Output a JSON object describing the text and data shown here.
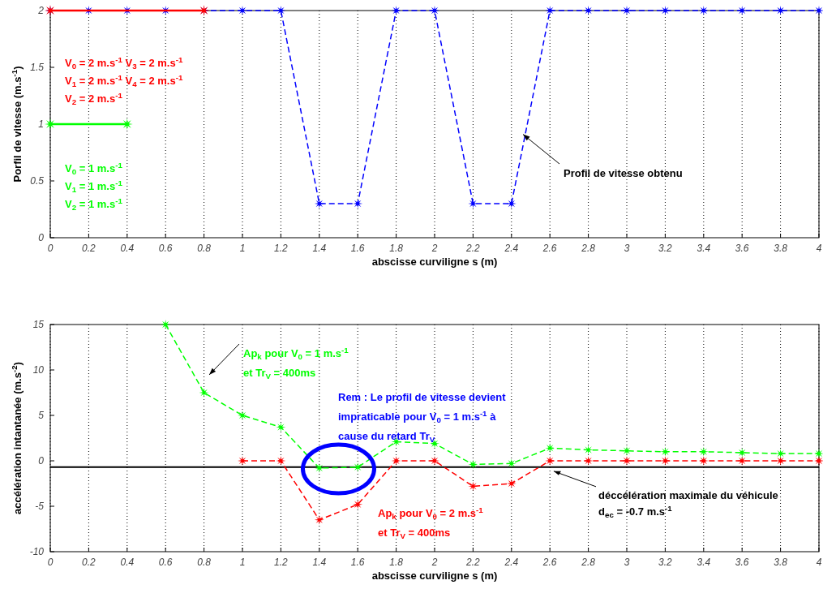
{
  "chart_data": [
    {
      "type": "line",
      "xlabel": "abscisse curviligne s (m)",
      "ylabel": "Porfil de vitesse (m.s$^{-1}$)",
      "xlim": [
        0,
        4
      ],
      "ylim": [
        0,
        2
      ],
      "xticks": [
        0,
        0.2,
        0.4,
        0.6,
        0.8,
        1,
        1.2,
        1.4,
        1.6,
        1.8,
        2,
        2.2,
        2.4,
        2.6,
        2.8,
        3,
        3.2,
        3.4,
        3.6,
        3.8,
        4
      ],
      "yticks": [
        0,
        0.5,
        1,
        1.5,
        2
      ],
      "grid": "x",
      "marker": "star",
      "series": [
        {
          "color": "#ff0000",
          "line_style": "solid",
          "x": [
            0,
            0.8
          ],
          "values": [
            2,
            2
          ]
        },
        {
          "color": "#00ff00",
          "line_style": "solid",
          "x": [
            0,
            0.4
          ],
          "values": [
            1,
            1
          ]
        },
        {
          "color": "#0000ff",
          "line_style": "dashed",
          "x": [
            0,
            0.2,
            0.4,
            0.6,
            0.8,
            1,
            1.2,
            1.4,
            1.6,
            1.8,
            2,
            2.2,
            2.4,
            2.6,
            2.8,
            3,
            3.2,
            3.4,
            3.6,
            3.8,
            4
          ],
          "values": [
            2,
            2,
            2,
            2,
            2,
            2,
            2,
            0.3,
            0.3,
            2,
            2,
            0.3,
            0.3,
            2,
            2,
            2,
            2,
            2,
            2,
            2,
            2
          ]
        }
      ],
      "annotations": [
        "V$_{0}$ = 2 m.s$^{-1}$ V$_{3}$ = 2 m.s$^{-1}$",
        "V$_{1}$ = 2 m.s$^{-1}$ V$_{4}$ = 2 m.s$^{-1}$",
        "V$_{2}$ = 2 m.s$^{-1}$",
        "V$_{0}$ = 1 m.s$^{-1}$",
        "V$_{1}$ = 1 m.s$^{-1}$",
        "V$_{2}$ = 1 m.s$^{-1}$",
        {
          "text": "Profil de vitesse obtenu",
          "x": 2.46,
          "y": 0.91
        }
      ]
    },
    {
      "type": "line",
      "xlabel": "abscisse curviligne s (m)",
      "ylabel": "accélération intantanée (m.s$^{-2}$)",
      "xlim": [
        0,
        4
      ],
      "ylim": [
        -10,
        15
      ],
      "xticks": [
        0,
        0.2,
        0.4,
        0.6,
        0.8,
        1,
        1.2,
        1.4,
        1.6,
        1.8,
        2,
        2.2,
        2.4,
        2.6,
        2.8,
        3,
        3.2,
        3.4,
        3.6,
        3.8,
        4
      ],
      "yticks": [
        -10,
        -5,
        0,
        5,
        10,
        15
      ],
      "grid": "x",
      "marker": "star",
      "series": [
        {
          "color": "#00ff00",
          "line_style": "dashed",
          "x": [
            0.6,
            0.8,
            1,
            1.2,
            1.4,
            1.6,
            1.8,
            2,
            2.2,
            2.4,
            2.6,
            2.8,
            3,
            3.2,
            3.4,
            3.6,
            3.8,
            4
          ],
          "values": [
            15,
            7.5,
            5,
            3.7,
            -0.8,
            -0.7,
            2.1,
            1.9,
            -0.4,
            -0.3,
            1.4,
            1.2,
            1.1,
            1,
            1,
            0.9,
            0.8,
            0.8
          ]
        },
        {
          "color": "#ff0000",
          "line_style": "dashed",
          "x": [
            1,
            1.2,
            1.4,
            1.6,
            1.8,
            2,
            2.2,
            2.4,
            2.6,
            2.8,
            3,
            3.2,
            3.4,
            3.6,
            3.8,
            4
          ],
          "values": [
            0,
            0,
            -6.5,
            -4.8,
            0,
            0,
            -2.8,
            -2.5,
            0,
            0,
            0,
            0,
            0,
            0,
            0,
            0
          ]
        }
      ],
      "ref_lines": [
        {
          "axis": "y",
          "value": -0.7,
          "color": "#000000",
          "label": "déccélération maximale du véhicule\n d$_{ec}$ = -0.7 m.s$^{-1}$"
        }
      ],
      "annotations": [
        "Ap$_{k}$ pour V$_{0}$ = 1 m.s$^{-1}$",
        "et Tr$_{V}$ = 400ms",
        "Ap$_{k}$ pour V$_{0}$ = 2 m.s$^{-1}$\net Tr$_{V}$ = 400ms",
        "Rem : Le profil de vitesse devient\nimpraticable pour V$_{0}$ = 1 m.s$^{-1}$ à\ncause du retard Tr$_{V}$"
      ]
    }
  ]
}
